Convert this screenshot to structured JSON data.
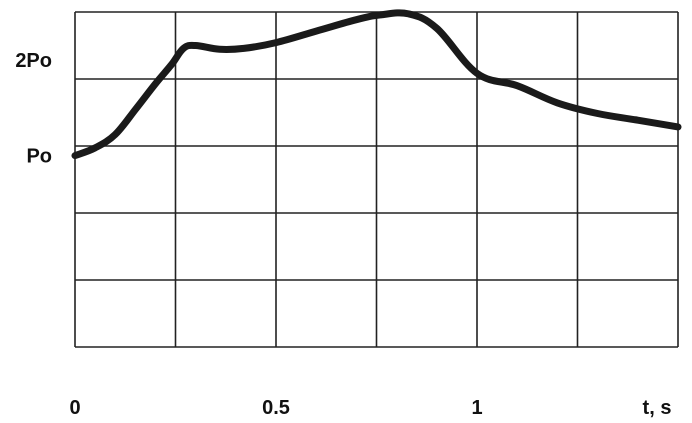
{
  "chart_data": {
    "type": "line",
    "title": "",
    "xlabel": "t, s",
    "ylabel": "",
    "xlim": [
      0,
      1.5
    ],
    "ylim": [
      -1,
      2.5
    ],
    "grid": true,
    "x_tick_values": [
      0,
      0.5,
      1
    ],
    "x_tick_labels": [
      "0",
      "0.5",
      "1"
    ],
    "y_tick_values": [
      1,
      2
    ],
    "y_tick_labels": [
      "Po",
      "2Po"
    ],
    "series": [
      {
        "color": "#1a1a1a",
        "points": [
          [
            0.0,
            1.0
          ],
          [
            0.05,
            1.08
          ],
          [
            0.1,
            1.22
          ],
          [
            0.15,
            1.48
          ],
          [
            0.2,
            1.75
          ],
          [
            0.24,
            1.95
          ],
          [
            0.27,
            2.12
          ],
          [
            0.3,
            2.15
          ],
          [
            0.36,
            2.11
          ],
          [
            0.42,
            2.12
          ],
          [
            0.5,
            2.18
          ],
          [
            0.6,
            2.3
          ],
          [
            0.7,
            2.42
          ],
          [
            0.76,
            2.47
          ],
          [
            0.83,
            2.48
          ],
          [
            0.9,
            2.33
          ],
          [
            1.0,
            1.86
          ],
          [
            1.1,
            1.73
          ],
          [
            1.2,
            1.55
          ],
          [
            1.3,
            1.44
          ],
          [
            1.4,
            1.37
          ],
          [
            1.5,
            1.3
          ]
        ]
      }
    ]
  }
}
